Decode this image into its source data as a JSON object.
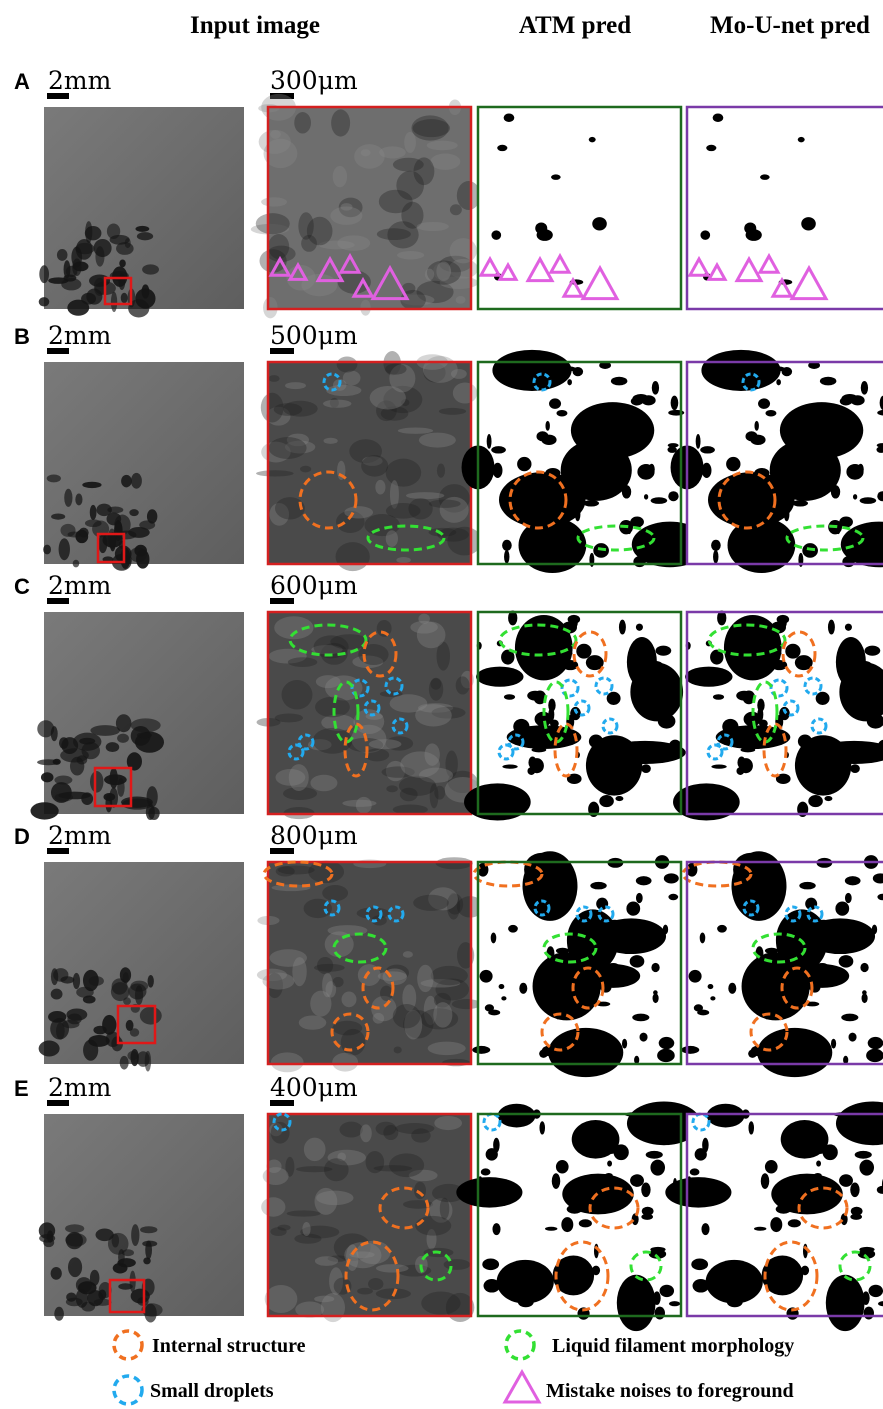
{
  "columns": [
    "Input image",
    "ATM pred",
    "Mo-U-net pred"
  ],
  "rows": [
    {
      "label": "A",
      "overview_scale": "2mm",
      "zoom_scale": "300μm"
    },
    {
      "label": "B",
      "overview_scale": "2mm",
      "zoom_scale": "500μm"
    },
    {
      "label": "C",
      "overview_scale": "2mm",
      "zoom_scale": "600μm"
    },
    {
      "label": "D",
      "overview_scale": "2mm",
      "zoom_scale": "800μm"
    },
    {
      "label": "E",
      "overview_scale": "2mm",
      "zoom_scale": "400μm"
    }
  ],
  "legend": [
    "Internal structure",
    "Liquid filament morphology",
    "Small droplets",
    "Mistake noises to foreground"
  ]
}
